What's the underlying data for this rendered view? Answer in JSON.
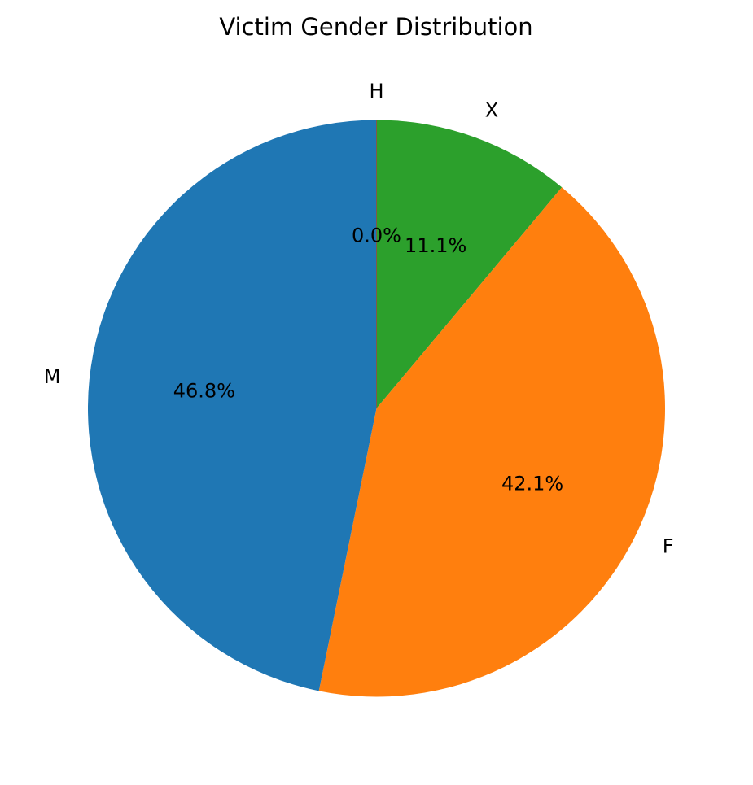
{
  "chart_data": {
    "type": "pie",
    "title": "Victim Gender Distribution",
    "start_angle_deg": 90,
    "direction": "clockwise",
    "slices": [
      {
        "label": "X",
        "percent": 11.1,
        "percent_label": "11.1%",
        "color": "#2ca02c"
      },
      {
        "label": "F",
        "percent": 42.1,
        "percent_label": "42.1%",
        "color": "#ff7f0e"
      },
      {
        "label": "M",
        "percent": 46.8,
        "percent_label": "46.8%",
        "color": "#1f77b4"
      },
      {
        "label": "H",
        "percent": 0.0,
        "percent_label": "0.0%",
        "color": "#d62728"
      }
    ]
  }
}
